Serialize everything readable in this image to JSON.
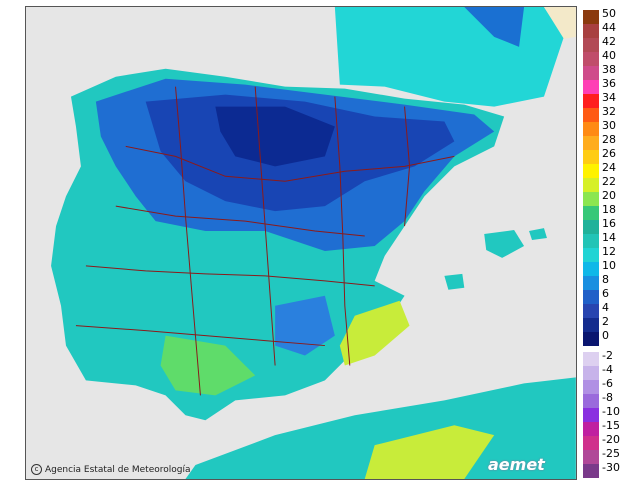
{
  "map": {
    "credit": "Agencia Estatal de Meteorología",
    "credit_icon": "copyright-icon",
    "logo": "aemet"
  },
  "legend": {
    "positive": [
      {
        "label": "50",
        "color": "#8b3a0e"
      },
      {
        "label": "44",
        "color": "#a84040"
      },
      {
        "label": "42",
        "color": "#b24a55"
      },
      {
        "label": "40",
        "color": "#c04d6a"
      },
      {
        "label": "38",
        "color": "#cf4b8a"
      },
      {
        "label": "36",
        "color": "#ff3fb5"
      },
      {
        "label": "34",
        "color": "#ff1e1e"
      },
      {
        "label": "32",
        "color": "#ff5a14"
      },
      {
        "label": "30",
        "color": "#ff8a14"
      },
      {
        "label": "28",
        "color": "#ffac1e"
      },
      {
        "label": "26",
        "color": "#ffcc14"
      },
      {
        "label": "24",
        "color": "#fff200"
      },
      {
        "label": "22",
        "color": "#d6f028"
      },
      {
        "label": "20",
        "color": "#8be650"
      },
      {
        "label": "18",
        "color": "#37c878"
      },
      {
        "label": "16",
        "color": "#20b29a"
      },
      {
        "label": "14",
        "color": "#22c4b6"
      },
      {
        "label": "12",
        "color": "#21d4d4"
      },
      {
        "label": "10",
        "color": "#10b8e8"
      },
      {
        "label": "8",
        "color": "#1a8fe0"
      },
      {
        "label": "6",
        "color": "#2060c8"
      },
      {
        "label": "4",
        "color": "#2845b0"
      },
      {
        "label": "2",
        "color": "#142c8e"
      },
      {
        "label": "0",
        "color": "#0a1670"
      }
    ],
    "negative": [
      {
        "label": "-2",
        "color": "#ddd0f0"
      },
      {
        "label": "-4",
        "color": "#c7b3ea"
      },
      {
        "label": "-6",
        "color": "#b090e4"
      },
      {
        "label": "-8",
        "color": "#9a6adc"
      },
      {
        "label": "-10",
        "color": "#8a30e0"
      },
      {
        "label": "-15",
        "color": "#c020a0"
      },
      {
        "label": "-20",
        "color": "#d0308c"
      },
      {
        "label": "-25",
        "color": "#b04898"
      },
      {
        "label": "-30",
        "color": "#7a3a8a"
      }
    ]
  }
}
